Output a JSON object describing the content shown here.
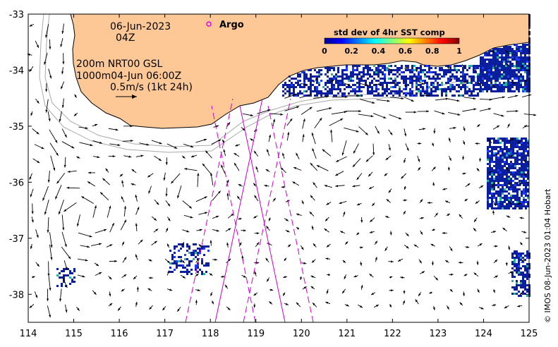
{
  "map": {
    "date": "06-Jun-2023",
    "hour": "04Z",
    "depth_line": "200m  NRT00 GSL",
    "depth2_line": "1000m04-Jun 06:00Z",
    "scale_line": "0.5m/s (1kt 24h)",
    "credit": "© IMOS 08-Jun-2023 01:04 Hobart",
    "legend_label": "Argo",
    "colors": {
      "land": "#fdc896",
      "argo_marker": "#e600e6",
      "track_lines": "#cc00cc",
      "bathymetry": "#aaaaaa"
    }
  },
  "colorbar": {
    "title": "std dev of 4hr SST comp",
    "ticks": [
      "0",
      "0.2",
      "0.4",
      "0.6",
      "0.8",
      "1"
    ],
    "range": [
      0,
      1
    ]
  },
  "axes": {
    "x_ticks": [
      "114",
      "115",
      "116",
      "117",
      "118",
      "119",
      "120",
      "121",
      "122",
      "123",
      "124",
      "125"
    ],
    "y_ticks": [
      "-33",
      "-34",
      "-35",
      "-36",
      "-37",
      "-38"
    ],
    "x_range": [
      114,
      125
    ],
    "y_range": [
      -38.5,
      -33
    ]
  }
}
